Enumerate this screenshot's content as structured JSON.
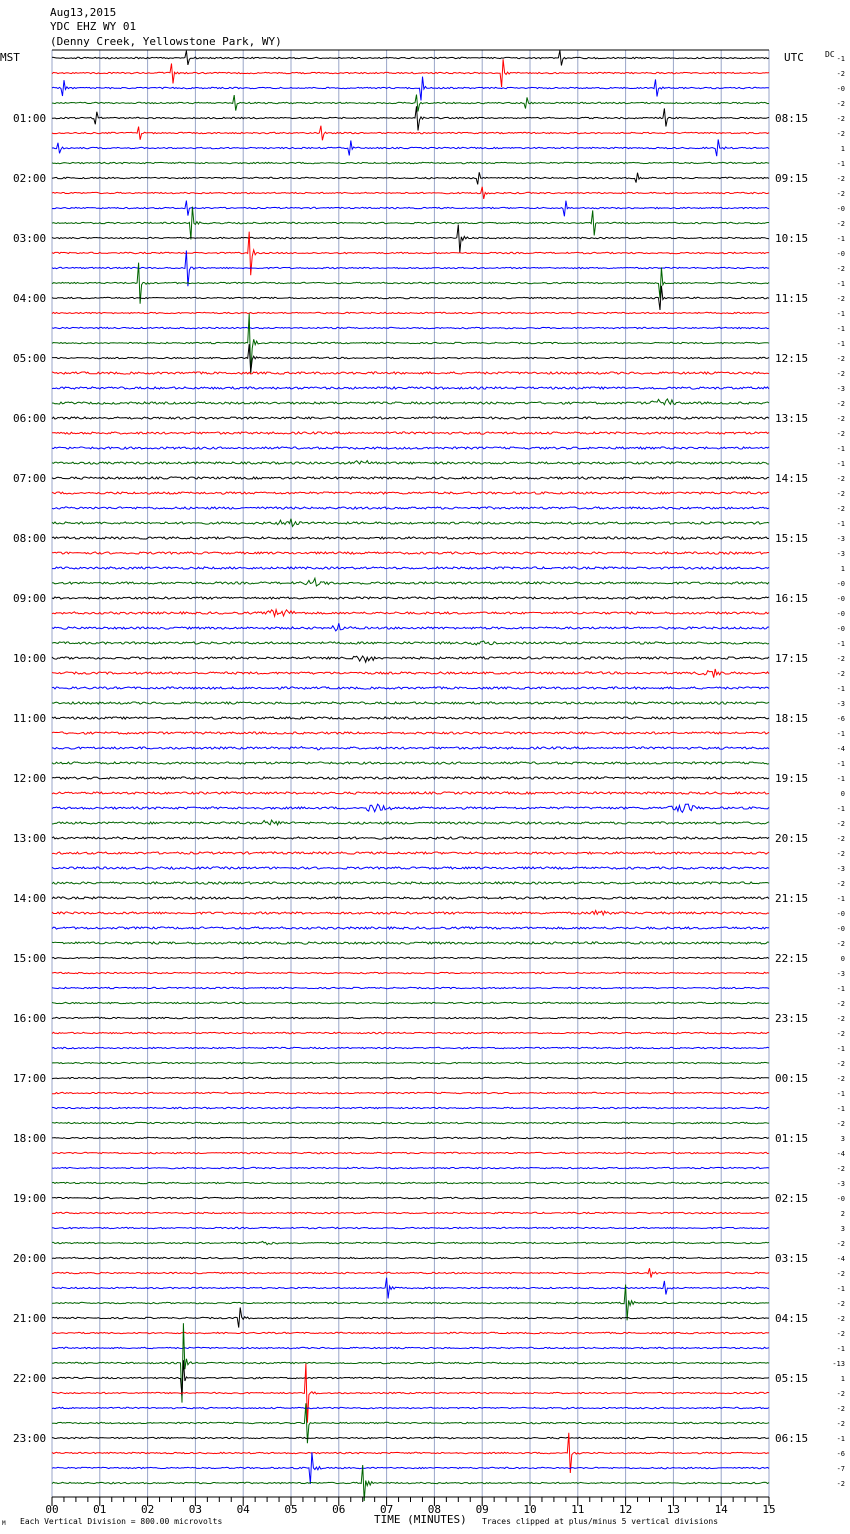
{
  "header": {
    "date": "Aug13,2015",
    "station": "YDC EHZ WY 01",
    "location": "(Denny Creek, Yellowstone Park, WY)"
  },
  "left_axis_label": "MST",
  "right_axis_label": "UTC",
  "dc_label": "DC",
  "footer": {
    "scale_note": "Each Vertical Division =  800.00 microvolts",
    "xlabel": "TIME (MINUTES)",
    "clip_note": "Traces clipped at plus/minus 5 vertical divisions",
    "corner_mark": "M"
  },
  "colors": {
    "trace_cycle": [
      "#000000",
      "#ff0000",
      "#0000ff",
      "#006400"
    ],
    "grid": "#9aa6c8"
  },
  "chart_data": {
    "type": "line",
    "subtype": "helicorder",
    "x_range": [
      0,
      15
    ],
    "x_ticks": [
      "00",
      "01",
      "02",
      "03",
      "04",
      "05",
      "06",
      "07",
      "08",
      "09",
      "10",
      "11",
      "12",
      "13",
      "14",
      "15"
    ],
    "rows_per_hour": 4,
    "row_count": 96,
    "left_hour_labels": [
      "01:00",
      "02:00",
      "03:00",
      "04:00",
      "05:00",
      "06:00",
      "07:00",
      "08:00",
      "09:00",
      "10:00",
      "11:00",
      "12:00",
      "13:00",
      "14:00",
      "15:00",
      "16:00",
      "17:00",
      "18:00",
      "19:00",
      "20:00",
      "21:00",
      "22:00",
      "23:00"
    ],
    "right_hour_labels": [
      "08:15",
      "09:15",
      "10:15",
      "11:15",
      "12:15",
      "13:15",
      "14:15",
      "15:15",
      "16:15",
      "17:15",
      "18:15",
      "19:15",
      "20:15",
      "21:15",
      "22:15",
      "23:15",
      "00:15",
      "01:15",
      "02:15",
      "03:15",
      "04:15",
      "05:15",
      "06:15"
    ],
    "dc_offsets": [
      "-1",
      "-2",
      "-0",
      "-2",
      "-2",
      "-2",
      "1",
      "-1",
      "-2",
      "-2",
      "-0",
      "-2",
      "-1",
      "-0",
      "-2",
      "-1",
      "-2",
      "-1",
      "-1",
      "-1",
      "-2",
      "-2",
      "-3",
      "-2",
      "-2",
      "-2",
      "-1",
      "-1",
      "-2",
      "-2",
      "-2",
      "-1",
      "-3",
      "-3",
      "1",
      "-0",
      "-0",
      "-0",
      "-0",
      "-1",
      "-2",
      "-2",
      "-1",
      "-3",
      "-6",
      "-1",
      "-4",
      "-1",
      "-1",
      "0",
      "-1",
      "-2",
      "-2",
      "-2",
      "-3",
      "-2",
      "-1",
      "-0",
      "-0",
      "-2",
      "0",
      "-3",
      "-1",
      "-2",
      "-2",
      "-2",
      "-1",
      "-2",
      "-2",
      "-1",
      "-1",
      "-2",
      "3",
      "-4",
      "-2",
      "-3",
      "-0",
      "2",
      "3",
      "-2",
      "-4",
      "-2",
      "-1",
      "-2",
      "-2",
      "-2",
      "-1",
      "-13",
      "1",
      "-2",
      "-2",
      "-2",
      "-1",
      "-6",
      "-7",
      "-2"
    ],
    "events": [
      {
        "row": 0,
        "minute": 2.8,
        "amp": 7
      },
      {
        "row": 0,
        "minute": 10.6,
        "amp": 7
      },
      {
        "row": 1,
        "minute": 2.5,
        "amp": 10
      },
      {
        "row": 1,
        "minute": 9.4,
        "amp": 14
      },
      {
        "row": 2,
        "minute": 0.2,
        "amp": 8
      },
      {
        "row": 2,
        "minute": 7.7,
        "amp": 12
      },
      {
        "row": 2,
        "minute": 12.6,
        "amp": 8
      },
      {
        "row": 3,
        "minute": 3.8,
        "amp": 8
      },
      {
        "row": 3,
        "minute": 7.6,
        "amp": 8
      },
      {
        "row": 3,
        "minute": 9.9,
        "amp": 6
      },
      {
        "row": 4,
        "minute": 0.9,
        "amp": 6
      },
      {
        "row": 4,
        "minute": 7.6,
        "amp": 12
      },
      {
        "row": 4,
        "minute": 12.8,
        "amp": 9
      },
      {
        "row": 5,
        "minute": 1.8,
        "amp": 7
      },
      {
        "row": 5,
        "minute": 5.6,
        "amp": 7
      },
      {
        "row": 6,
        "minute": 0.1,
        "amp": 5
      },
      {
        "row": 6,
        "minute": 6.2,
        "amp": 8
      },
      {
        "row": 6,
        "minute": 13.9,
        "amp": 8
      },
      {
        "row": 8,
        "minute": 8.9,
        "amp": 6
      },
      {
        "row": 8,
        "minute": 12.2,
        "amp": 5
      },
      {
        "row": 9,
        "minute": 9.0,
        "amp": 6
      },
      {
        "row": 10,
        "minute": 2.8,
        "amp": 7
      },
      {
        "row": 10,
        "minute": 10.7,
        "amp": 8
      },
      {
        "row": 11,
        "minute": 2.9,
        "amp": 16
      },
      {
        "row": 11,
        "minute": 11.3,
        "amp": 12
      },
      {
        "row": 12,
        "minute": 8.5,
        "amp": 14
      },
      {
        "row": 13,
        "minute": 4.1,
        "amp": 22
      },
      {
        "row": 14,
        "minute": 2.8,
        "amp": 18
      },
      {
        "row": 15,
        "minute": 1.8,
        "amp": 20
      },
      {
        "row": 15,
        "minute": 12.7,
        "amp": 16
      },
      {
        "row": 16,
        "minute": 12.7,
        "amp": 12
      },
      {
        "row": 19,
        "minute": 4.1,
        "amp": 30
      },
      {
        "row": 20,
        "minute": 4.1,
        "amp": 14
      },
      {
        "row": 87,
        "minute": 2.7,
        "amp": 40
      },
      {
        "row": 88,
        "minute": 2.7,
        "amp": 18
      },
      {
        "row": 89,
        "minute": 5.3,
        "amp": 30
      },
      {
        "row": 91,
        "minute": 5.3,
        "amp": 20
      },
      {
        "row": 93,
        "minute": 10.8,
        "amp": 20
      },
      {
        "row": 94,
        "minute": 5.4,
        "amp": 16
      },
      {
        "row": 95,
        "minute": 6.5,
        "amp": 18
      },
      {
        "row": 83,
        "minute": 12.0,
        "amp": 18
      },
      {
        "row": 84,
        "minute": 3.9,
        "amp": 10
      },
      {
        "row": 82,
        "minute": 7.0,
        "amp": 10
      },
      {
        "row": 82,
        "minute": 12.8,
        "amp": 7
      },
      {
        "row": 81,
        "minute": 12.5,
        "amp": 5
      }
    ],
    "noise_bursts": [
      {
        "row": 23,
        "minute": 12.8,
        "amp": 5
      },
      {
        "row": 27,
        "minute": 6.5,
        "amp": 3
      },
      {
        "row": 31,
        "minute": 5.0,
        "amp": 5
      },
      {
        "row": 35,
        "minute": 5.5,
        "amp": 4
      },
      {
        "row": 37,
        "minute": 4.8,
        "amp": 7
      },
      {
        "row": 38,
        "minute": 6.0,
        "amp": 4
      },
      {
        "row": 39,
        "minute": 9.0,
        "amp": 3
      },
      {
        "row": 40,
        "minute": 6.5,
        "amp": 5
      },
      {
        "row": 41,
        "minute": 13.8,
        "amp": 7
      },
      {
        "row": 46,
        "minute": 5.5,
        "amp": 3
      },
      {
        "row": 50,
        "minute": 6.8,
        "amp": 6
      },
      {
        "row": 50,
        "minute": 13.2,
        "amp": 7
      },
      {
        "row": 51,
        "minute": 4.6,
        "amp": 3
      },
      {
        "row": 57,
        "minute": 11.5,
        "amp": 3
      },
      {
        "row": 79,
        "minute": 4.5,
        "amp": 4
      }
    ]
  }
}
